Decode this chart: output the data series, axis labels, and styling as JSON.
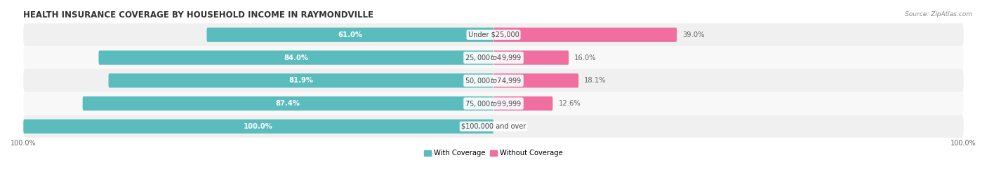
{
  "title": "HEALTH INSURANCE COVERAGE BY HOUSEHOLD INCOME IN RAYMONDVILLE",
  "source": "Source: ZipAtlas.com",
  "categories": [
    "Under $25,000",
    "$25,000 to $49,999",
    "$50,000 to $74,999",
    "$75,000 to $99,999",
    "$100,000 and over"
  ],
  "with_coverage": [
    61.0,
    84.0,
    81.9,
    87.4,
    100.0
  ],
  "without_coverage": [
    39.0,
    16.0,
    18.1,
    12.6,
    0.0
  ],
  "color_with": "#5bbcbe",
  "color_without": "#f06fa0",
  "row_bg_odd": "#f0f0f0",
  "row_bg_even": "#f8f8f8",
  "title_fontsize": 8.5,
  "label_fontsize": 7.2,
  "cat_fontsize": 7.0,
  "tick_fontsize": 7.0,
  "source_fontsize": 6.5,
  "bar_height": 0.62,
  "figsize": [
    14.06,
    2.69
  ],
  "dpi": 100,
  "xlim_left": -100,
  "xlim_right": 100
}
